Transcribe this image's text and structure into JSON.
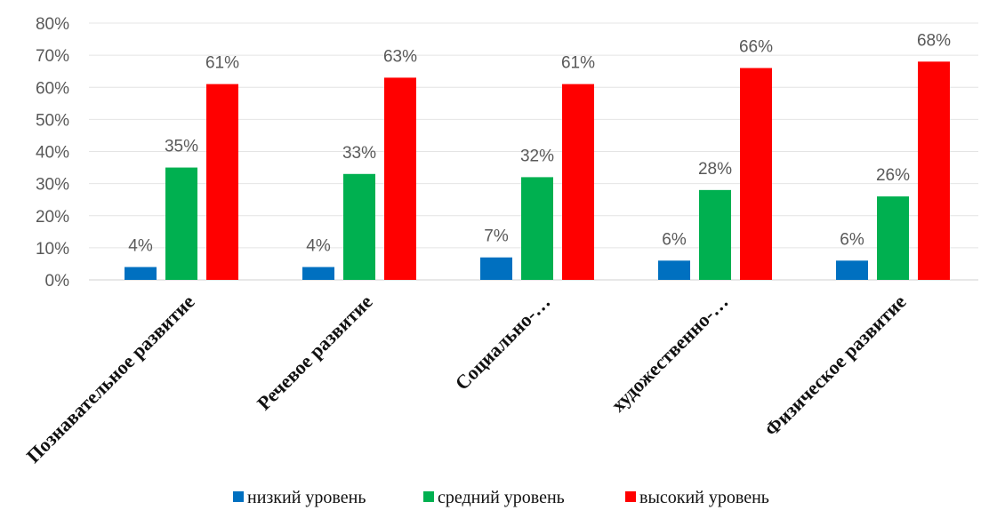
{
  "chart_data": {
    "type": "bar",
    "categories": [
      "Познавательное развитие",
      "Речевое развитие",
      "Социально-…",
      "художественно-…",
      "Физическое развитие"
    ],
    "series": [
      {
        "name": "низкий уровень",
        "color": "#0070C0",
        "values": [
          4,
          4,
          7,
          6,
          6
        ]
      },
      {
        "name": "средний уровень",
        "color": "#00B050",
        "values": [
          35,
          33,
          32,
          28,
          26
        ]
      },
      {
        "name": "высокий уровень",
        "color": "#FF0000",
        "values": [
          61,
          63,
          61,
          66,
          68
        ]
      }
    ],
    "value_suffix": "%",
    "yticks": [
      "0%",
      "10%",
      "20%",
      "30%",
      "40%",
      "50%",
      "60%",
      "70%",
      "80%"
    ],
    "ylim": [
      0,
      80
    ],
    "grid": true,
    "legend_position": "bottom",
    "title": "",
    "xlabel": "",
    "ylabel": ""
  }
}
